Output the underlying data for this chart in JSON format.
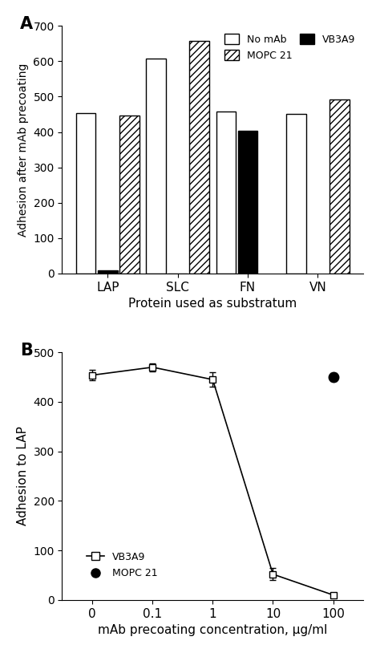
{
  "panel_A": {
    "categories": [
      "LAP",
      "SLC",
      "FN",
      "VN"
    ],
    "no_mab": [
      453,
      608,
      457,
      452
    ],
    "vb3a9": [
      8,
      -20,
      403,
      null
    ],
    "mopc21": [
      447,
      657,
      null,
      493
    ],
    "ylabel": "Adhesion after mAb precoating",
    "xlabel": "Protein used as substratum",
    "ylim": [
      0,
      700
    ],
    "yticks": [
      0,
      100,
      200,
      300,
      400,
      500,
      600,
      700
    ],
    "label": "A"
  },
  "panel_B": {
    "x_vb3a9": [
      0,
      0.1,
      1,
      10,
      100
    ],
    "y_vb3a9": [
      454,
      470,
      445,
      52,
      10
    ],
    "yerr_vb3a9": [
      10,
      8,
      15,
      12,
      5
    ],
    "x_mopc21": [
      100
    ],
    "y_mopc21": [
      450
    ],
    "yerr_mopc21": [
      8
    ],
    "ylabel": "Adhesion to LAP",
    "xlabel": "mAb precoating concentration, μg/ml",
    "ylim": [
      0,
      500
    ],
    "yticks": [
      0,
      100,
      200,
      300,
      400,
      500
    ],
    "xticklabels": [
      "0",
      "0.1",
      "1",
      "10",
      "100"
    ],
    "label": "B"
  }
}
